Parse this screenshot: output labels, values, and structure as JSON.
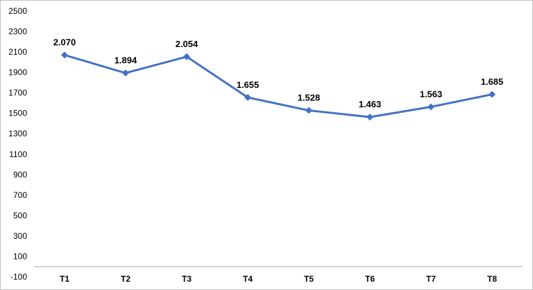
{
  "chart_data": {
    "type": "line",
    "categories": [
      "T1",
      "T2",
      "T3",
      "T4",
      "T5",
      "T6",
      "T7",
      "T8"
    ],
    "series": [
      {
        "values": [
          2070,
          1894,
          2054,
          1655,
          1528,
          1463,
          1563,
          1685
        ],
        "color": "#4472C4",
        "marker": "diamond"
      }
    ],
    "data_labels": [
      "2.070",
      "1.894",
      "2.054",
      "1.655",
      "1.528",
      "1.463",
      "1.563",
      "1.685"
    ],
    "highlight_label_color": "#FF0000",
    "highlight_index": 7,
    "label_color": "#000000",
    "ylim": [
      -100,
      2500
    ],
    "yticks": [
      -100,
      100,
      300,
      500,
      700,
      900,
      1100,
      1300,
      1500,
      1700,
      1900,
      2100,
      2300,
      2500
    ],
    "ytick_labels": [
      "-100",
      "100",
      "300",
      "500",
      "700",
      "900",
      "1100",
      "1300",
      "1500",
      "1700",
      "1900",
      "2100",
      "2300",
      "2500"
    ],
    "title": "",
    "xlabel": "",
    "ylabel": "",
    "grid": false,
    "legend": "none"
  }
}
